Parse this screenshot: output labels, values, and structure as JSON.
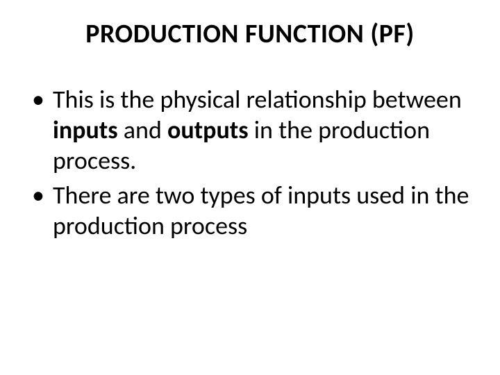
{
  "slide": {
    "title": "PRODUCTION FUNCTION (PF)",
    "bullets": [
      {
        "pre": "This is the physical relationship between ",
        "bold1": "inputs ",
        "mid": " and ",
        "bold2": "outputs ",
        "post": "in the production process."
      },
      {
        "text": "There are two types of inputs used in the production process"
      }
    ]
  },
  "style": {
    "background_color": "#ffffff",
    "text_color": "#000000",
    "title_fontsize": 38,
    "title_fontweight": 700,
    "body_fontsize": 36,
    "font_family": "Calibri"
  }
}
